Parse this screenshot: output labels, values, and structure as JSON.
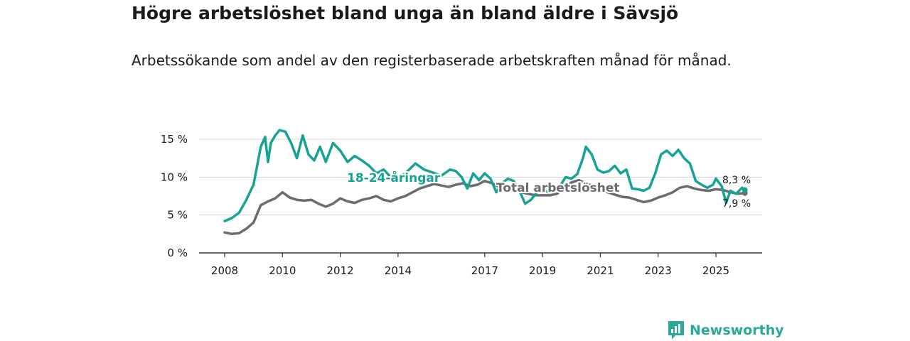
{
  "header": {
    "title": "Högre arbetslöshet bland unga än bland äldre i Sävsjö",
    "subtitle": "Arbetssökande som andel av den registerbaserade arbetskraften månad för månad."
  },
  "brand": {
    "name": "Newsworthy"
  },
  "chart_data": {
    "type": "line",
    "title": "Högre arbetslöshet bland unga än bland äldre i Sävsjö",
    "subtitle": "Arbetssökande som andel av den registerbaserade arbetskraften månad för månad.",
    "xlabel": "",
    "ylabel": "",
    "xlim": [
      2008.0,
      2026.5
    ],
    "ylim": [
      0,
      16.5
    ],
    "grid": true,
    "x_ticks": [
      {
        "value": 2008,
        "label": "2008"
      },
      {
        "value": 2010,
        "label": "2010"
      },
      {
        "value": 2012,
        "label": "2012"
      },
      {
        "value": 2014,
        "label": "2014"
      },
      {
        "value": 2017,
        "label": "2017"
      },
      {
        "value": 2019,
        "label": "2019"
      },
      {
        "value": 2021,
        "label": "2021"
      },
      {
        "value": 2023,
        "label": "2023"
      },
      {
        "value": 2025,
        "label": "2025"
      }
    ],
    "y_ticks": [
      {
        "value": 0,
        "label": "0 %"
      },
      {
        "value": 5,
        "label": "5 %"
      },
      {
        "value": 10,
        "label": "10 %"
      },
      {
        "value": 15,
        "label": "15 %"
      }
    ],
    "series": [
      {
        "name": "18-24-åringar",
        "color": "#16a394",
        "end_label": "8,3 %",
        "points": [
          [
            2008.0,
            4.2
          ],
          [
            2008.25,
            4.6
          ],
          [
            2008.5,
            5.3
          ],
          [
            2008.75,
            7.0
          ],
          [
            2009.0,
            9.0
          ],
          [
            2009.25,
            14.0
          ],
          [
            2009.4,
            15.3
          ],
          [
            2009.5,
            12.0
          ],
          [
            2009.6,
            14.5
          ],
          [
            2009.75,
            15.5
          ],
          [
            2009.9,
            16.2
          ],
          [
            2010.1,
            16.0
          ],
          [
            2010.3,
            14.5
          ],
          [
            2010.5,
            12.5
          ],
          [
            2010.7,
            15.5
          ],
          [
            2010.9,
            13.0
          ],
          [
            2011.1,
            12.2
          ],
          [
            2011.3,
            14.0
          ],
          [
            2011.5,
            12.0
          ],
          [
            2011.75,
            14.5
          ],
          [
            2012.0,
            13.5
          ],
          [
            2012.25,
            12.0
          ],
          [
            2012.5,
            12.8
          ],
          [
            2012.75,
            12.2
          ],
          [
            2013.0,
            11.5
          ],
          [
            2013.25,
            10.5
          ],
          [
            2013.5,
            11.0
          ],
          [
            2013.75,
            10.0
          ],
          [
            2014.0,
            10.0
          ],
          [
            2014.25,
            10.5
          ],
          [
            2014.6,
            11.8
          ],
          [
            2014.9,
            11.0
          ],
          [
            2015.2,
            10.6
          ],
          [
            2015.5,
            10.2
          ],
          [
            2015.8,
            11.0
          ],
          [
            2016.0,
            10.8
          ],
          [
            2016.2,
            10.0
          ],
          [
            2016.4,
            8.5
          ],
          [
            2016.6,
            10.5
          ],
          [
            2016.8,
            9.6
          ],
          [
            2017.0,
            10.5
          ],
          [
            2017.2,
            9.8
          ],
          [
            2017.4,
            8.0
          ],
          [
            2017.6,
            9.2
          ],
          [
            2017.8,
            9.8
          ],
          [
            2018.0,
            9.5
          ],
          [
            2018.2,
            8.2
          ],
          [
            2018.4,
            6.5
          ],
          [
            2018.6,
            7.0
          ],
          [
            2018.8,
            8.0
          ],
          [
            2019.0,
            8.4
          ],
          [
            2019.2,
            8.0
          ],
          [
            2019.4,
            8.2
          ],
          [
            2019.6,
            8.8
          ],
          [
            2019.8,
            10.0
          ],
          [
            2020.0,
            9.8
          ],
          [
            2020.2,
            10.4
          ],
          [
            2020.4,
            12.5
          ],
          [
            2020.5,
            14.0
          ],
          [
            2020.7,
            13.0
          ],
          [
            2020.9,
            11.0
          ],
          [
            2021.1,
            10.6
          ],
          [
            2021.3,
            10.8
          ],
          [
            2021.5,
            11.5
          ],
          [
            2021.7,
            10.5
          ],
          [
            2021.9,
            11.0
          ],
          [
            2022.1,
            8.5
          ],
          [
            2022.3,
            8.4
          ],
          [
            2022.5,
            8.2
          ],
          [
            2022.7,
            8.6
          ],
          [
            2022.9,
            10.5
          ],
          [
            2023.1,
            13.0
          ],
          [
            2023.3,
            13.5
          ],
          [
            2023.5,
            12.8
          ],
          [
            2023.7,
            13.6
          ],
          [
            2023.9,
            12.5
          ],
          [
            2024.1,
            11.8
          ],
          [
            2024.3,
            9.5
          ],
          [
            2024.5,
            9.0
          ],
          [
            2024.7,
            8.6
          ],
          [
            2024.9,
            9.0
          ],
          [
            2025.0,
            9.8
          ],
          [
            2025.2,
            8.8
          ],
          [
            2025.35,
            6.6
          ],
          [
            2025.5,
            8.2
          ],
          [
            2025.7,
            7.8
          ],
          [
            2025.9,
            8.6
          ],
          [
            2026.0,
            8.3
          ]
        ]
      },
      {
        "name": "Total arbetslöshet",
        "color": "#6b6b70",
        "end_label": "7,9 %",
        "points": [
          [
            2008.0,
            2.7
          ],
          [
            2008.25,
            2.5
          ],
          [
            2008.5,
            2.6
          ],
          [
            2008.75,
            3.2
          ],
          [
            2009.0,
            4.0
          ],
          [
            2009.25,
            6.3
          ],
          [
            2009.5,
            6.8
          ],
          [
            2009.75,
            7.2
          ],
          [
            2010.0,
            8.0
          ],
          [
            2010.25,
            7.3
          ],
          [
            2010.5,
            7.0
          ],
          [
            2010.75,
            6.9
          ],
          [
            2011.0,
            7.0
          ],
          [
            2011.25,
            6.5
          ],
          [
            2011.5,
            6.1
          ],
          [
            2011.75,
            6.5
          ],
          [
            2012.0,
            7.2
          ],
          [
            2012.25,
            6.8
          ],
          [
            2012.5,
            6.6
          ],
          [
            2012.75,
            7.0
          ],
          [
            2013.0,
            7.2
          ],
          [
            2013.25,
            7.5
          ],
          [
            2013.5,
            7.0
          ],
          [
            2013.75,
            6.8
          ],
          [
            2014.0,
            7.2
          ],
          [
            2014.25,
            7.5
          ],
          [
            2014.5,
            8.0
          ],
          [
            2014.75,
            8.5
          ],
          [
            2015.0,
            8.8
          ],
          [
            2015.25,
            9.1
          ],
          [
            2015.5,
            8.9
          ],
          [
            2015.75,
            8.7
          ],
          [
            2016.0,
            9.0
          ],
          [
            2016.25,
            9.2
          ],
          [
            2016.5,
            8.8
          ],
          [
            2016.75,
            9.0
          ],
          [
            2017.0,
            9.5
          ],
          [
            2017.25,
            9.2
          ],
          [
            2017.5,
            8.7
          ],
          [
            2017.75,
            8.5
          ],
          [
            2018.0,
            8.3
          ],
          [
            2018.25,
            8.0
          ],
          [
            2018.5,
            7.8
          ],
          [
            2018.75,
            7.6
          ],
          [
            2019.0,
            7.6
          ],
          [
            2019.25,
            7.6
          ],
          [
            2019.5,
            7.8
          ],
          [
            2019.75,
            8.6
          ],
          [
            2020.0,
            9.3
          ],
          [
            2020.25,
            9.6
          ],
          [
            2020.5,
            9.2
          ],
          [
            2020.75,
            8.8
          ],
          [
            2021.0,
            8.4
          ],
          [
            2021.25,
            8.0
          ],
          [
            2021.5,
            7.7
          ],
          [
            2021.75,
            7.4
          ],
          [
            2022.0,
            7.3
          ],
          [
            2022.25,
            7.0
          ],
          [
            2022.5,
            6.7
          ],
          [
            2022.75,
            6.9
          ],
          [
            2023.0,
            7.3
          ],
          [
            2023.25,
            7.6
          ],
          [
            2023.5,
            8.0
          ],
          [
            2023.75,
            8.6
          ],
          [
            2024.0,
            8.8
          ],
          [
            2024.25,
            8.5
          ],
          [
            2024.5,
            8.3
          ],
          [
            2024.75,
            8.2
          ],
          [
            2025.0,
            8.4
          ],
          [
            2025.25,
            8.3
          ],
          [
            2025.5,
            8.0
          ],
          [
            2025.75,
            7.8
          ],
          [
            2026.0,
            7.9
          ]
        ]
      }
    ]
  }
}
